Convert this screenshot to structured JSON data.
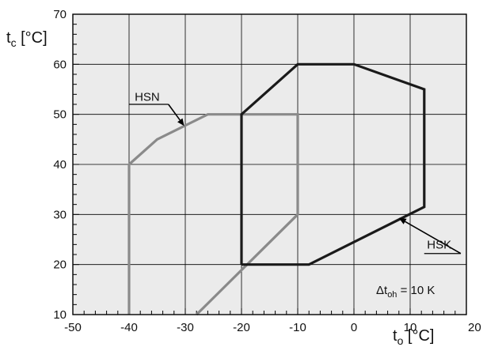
{
  "chart_data": {
    "type": "line",
    "xlabel": {
      "main": "t",
      "sub": "o",
      "unit": " [°C]"
    },
    "ylabel": {
      "main": "t",
      "sub": "c",
      "unit": " [°C]"
    },
    "xlim": [
      -50,
      20
    ],
    "ylim": [
      10,
      70
    ],
    "x_ticks": [
      -50,
      -40,
      -30,
      -20,
      -10,
      0,
      10
    ],
    "x_tick_labels": [
      "-50",
      "-40",
      "-30",
      "-20",
      "-10",
      "0",
      "10"
    ],
    "x_last_label": "20",
    "y_ticks": [
      10,
      20,
      30,
      40,
      50,
      60,
      70
    ],
    "y_tick_labels": [
      "10",
      "20",
      "30",
      "40",
      "50",
      "60",
      "70"
    ],
    "grid": true,
    "background": "#ebebeb",
    "series": [
      {
        "name": "HSN",
        "color": "#8a8a8a",
        "points": [
          [
            -40,
            10
          ],
          [
            -40,
            40
          ],
          [
            -35,
            45
          ],
          [
            -26,
            50
          ],
          [
            -10,
            50
          ],
          [
            -10,
            30
          ],
          [
            -28,
            10
          ]
        ]
      },
      {
        "name": "HSK",
        "color": "#1a1a1a",
        "points": [
          [
            -20,
            20
          ],
          [
            -20,
            50
          ],
          [
            -10,
            60
          ],
          [
            0,
            60
          ],
          [
            12.5,
            55
          ],
          [
            12.5,
            31.5
          ],
          [
            -8,
            20
          ],
          [
            -20,
            20
          ]
        ]
      }
    ],
    "annotations": [
      {
        "id": "hsn",
        "label": "HSN",
        "label_pos": [
          -39,
          52.7
        ],
        "line_from": [
          -40,
          52
        ],
        "line_to": [
          -33,
          52
        ],
        "arrow_to": [
          -30.2,
          47.7
        ]
      },
      {
        "id": "hsk",
        "label": "HSK",
        "label_pos": [
          13,
          23.2
        ],
        "line_from": [
          12.5,
          22.2
        ],
        "line_to": [
          19,
          22.2
        ],
        "arrow_to": [
          8,
          29.3
        ]
      }
    ],
    "note": {
      "delta": "Δt",
      "sub": "oh",
      "rest": " = 10 K"
    }
  }
}
